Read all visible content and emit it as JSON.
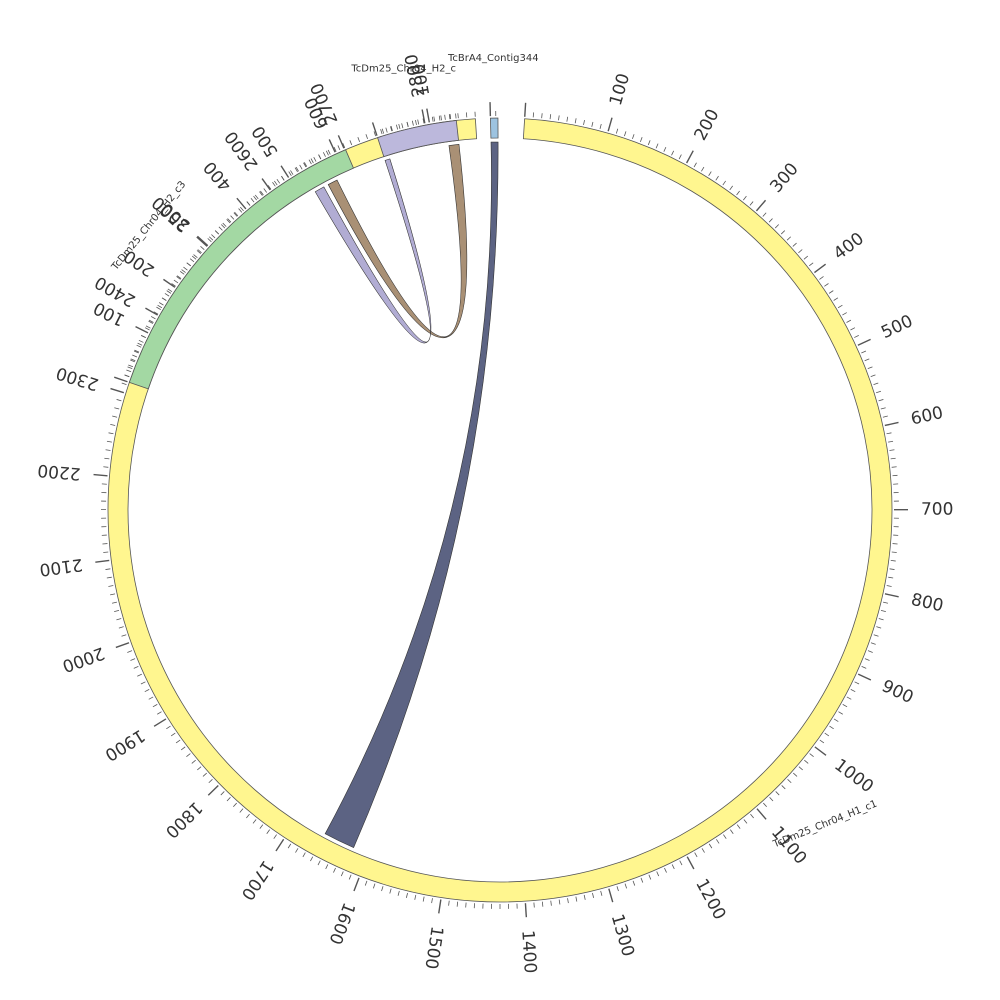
{
  "chart_data": {
    "type": "circos",
    "tick_minor_step": 10,
    "tick_major_step": 100,
    "segments": [
      {
        "id": "h1c1",
        "name": "TcDm25_Chr04_H1_c1",
        "length": 2860,
        "color": "#FFF68F",
        "tick_labels": [
          "100",
          "200",
          "300",
          "400",
          "500",
          "600",
          "700",
          "800",
          "900",
          "1000",
          "1100",
          "1200",
          "1300",
          "1400",
          "1500",
          "1600",
          "1700",
          "1800",
          "1900",
          "2000",
          "2100",
          "2200",
          "2300",
          "2400",
          "2500",
          "2600",
          "2700",
          "2800"
        ]
      },
      {
        "id": "h2c3",
        "name": "TcDm25_Chr04_H2_c3",
        "length": 620,
        "color": "#A3D8A3",
        "tick_labels": [
          "100",
          "200",
          "300",
          "400",
          "500",
          "600"
        ]
      },
      {
        "id": "h2c",
        "name": "TcDm25_Chr04_H2_c",
        "length": 150,
        "color": "#BCB8DC",
        "tick_labels": [
          "100"
        ]
      },
      {
        "id": "contig",
        "name": "TcBrA4_Contig344",
        "length": 14,
        "color": "#9DC3E0",
        "tick_labels": []
      }
    ],
    "links": [
      {
        "from": "contig",
        "from_range": [
          0,
          14
        ],
        "to": "h1c1",
        "to_range": [
          1620,
          1660
        ],
        "color": "#4A5275"
      },
      {
        "from": "h2c",
        "from_range": [
          130,
          150
        ],
        "to": "h2c3",
        "to_range": [
          560,
          580
        ],
        "color": "#A08466"
      },
      {
        "from": "h2c",
        "from_range": [
          0,
          10
        ],
        "to": "h2c3",
        "to_range": [
          530,
          550
        ],
        "color": "#A9A3CE"
      }
    ]
  }
}
